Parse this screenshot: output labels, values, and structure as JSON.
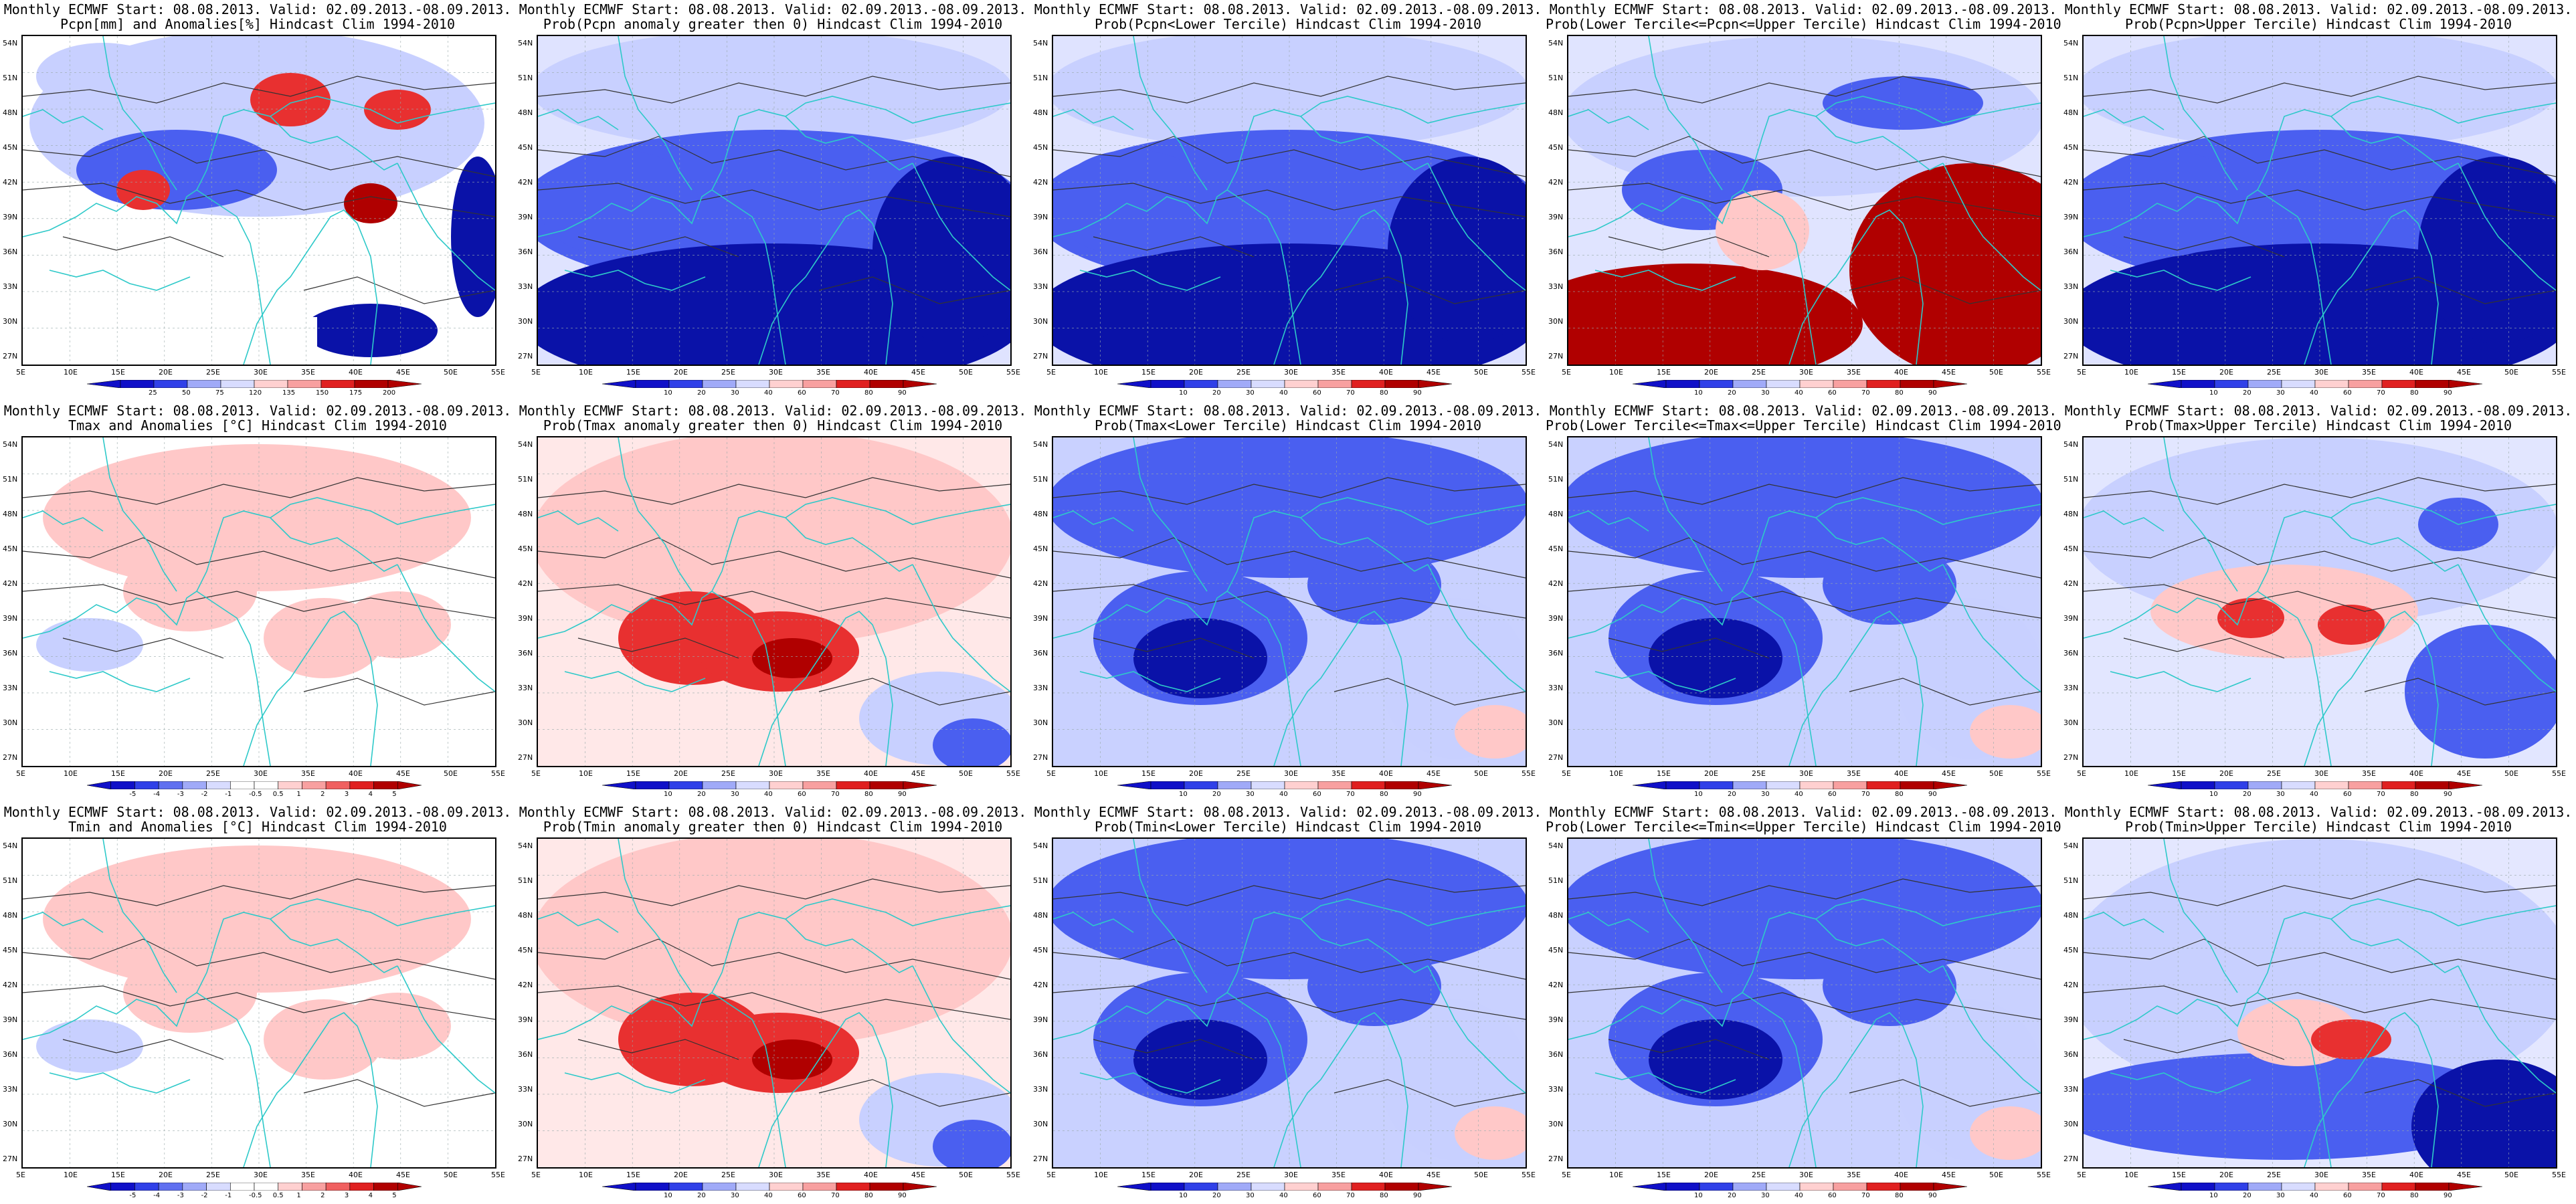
{
  "lat_labels": [
    "54N",
    "51N",
    "48N",
    "45N",
    "42N",
    "39N",
    "36N",
    "33N",
    "30N",
    "27N"
  ],
  "lon_labels": [
    "5E",
    "10E",
    "15E",
    "20E",
    "25E",
    "30E",
    "35E",
    "40E",
    "45E",
    "50E",
    "55E"
  ],
  "colors": {
    "coast": "#2ec9c9",
    "contour": "#333333",
    "blue_dark": "#0a12a8",
    "blue_mid": "#4a5ff0",
    "blue_light": "#c8d0ff",
    "red_dark": "#b00000",
    "red_mid": "#e83030",
    "red_light": "#ffc8c8"
  },
  "scale_labels": {
    "pcpn": [
      "25",
      "50",
      "75",
      "120",
      "135",
      "150",
      "175",
      "200"
    ],
    "prob": [
      "10",
      "20",
      "30",
      "40",
      "60",
      "70",
      "80",
      "90"
    ],
    "anom": [
      "-5",
      "-4",
      "-3",
      "-2",
      "-1",
      "-0.5",
      "0.5",
      "1",
      "2",
      "3",
      "4",
      "5"
    ]
  },
  "panels": [
    {
      "line1": "Monthly ECMWF Start: 08.08.2013. Valid: 02.09.2013.-08.09.2013.",
      "line2": "Pcpn[mm] and Anomalies[%] Hindcast Clim 1994-2010",
      "scale": "pcpn",
      "mode": "pcpn"
    },
    {
      "line1": "Monthly ECMWF Start: 08.08.2013. Valid: 02.09.2013.-08.09.2013.",
      "line2": "Prob(Pcpn anomaly greater then 0) Hindcast Clim 1994-2010",
      "scale": "prob",
      "mode": "blue"
    },
    {
      "line1": "Monthly ECMWF Start: 08.08.2013. Valid: 02.09.2013.-08.09.2013.",
      "line2": "Prob(Pcpn<Lower Tercile) Hindcast Clim 1994-2010",
      "scale": "prob",
      "mode": "blue"
    },
    {
      "line1": "Monthly ECMWF Start: 08.08.2013. Valid: 02.09.2013.-08.09.2013.",
      "line2": "Prob(Lower Tercile<=Pcpn<=Upper Tercile) Hindcast Clim 1994-2010",
      "scale": "prob",
      "mode": "redsouth"
    },
    {
      "line1": "Monthly ECMWF Start: 08.08.2013. Valid: 02.09.2013.-08.09.2013.",
      "line2": "Prob(Pcpn>Upper Tercile) Hindcast Clim 1994-2010",
      "scale": "prob",
      "mode": "blue"
    },
    {
      "line1": "Monthly ECMWF Start: 08.08.2013. Valid: 02.09.2013.-08.09.2013.",
      "line2": "Tmax and Anomalies [°C] Hindcast Clim 1994-2010",
      "scale": "anom",
      "mode": "lightred"
    },
    {
      "line1": "Monthly ECMWF Start: 08.08.2013. Valid: 02.09.2013.-08.09.2013.",
      "line2": "Prob(Tmax anomaly greater then 0) Hindcast Clim 1994-2010",
      "scale": "prob",
      "mode": "red"
    },
    {
      "line1": "Monthly ECMWF Start: 08.08.2013. Valid: 02.09.2013.-08.09.2013.",
      "line2": "Prob(Tmax<Lower Tercile) Hindcast Clim 1994-2010",
      "scale": "prob",
      "mode": "bluemid"
    },
    {
      "line1": "Monthly ECMWF Start: 08.08.2013. Valid: 02.09.2013.-08.09.2013.",
      "line2": "Prob(Lower Tercile<=Tmax<=Upper Tercile) Hindcast Clim 1994-2010",
      "scale": "prob",
      "mode": "bluemid"
    },
    {
      "line1": "Monthly ECMWF Start: 08.08.2013. Valid: 02.09.2013.-08.09.2013.",
      "line2": "Prob(Tmax>Upper Tercile) Hindcast Clim 1994-2010",
      "scale": "prob",
      "mode": "mixed"
    },
    {
      "line1": "Monthly ECMWF Start: 08.08.2013. Valid: 02.09.2013.-08.09.2013.",
      "line2": "Tmin and Anomalies [°C] Hindcast Clim 1994-2010",
      "scale": "anom",
      "mode": "lightred"
    },
    {
      "line1": "Monthly ECMWF Start: 08.08.2013. Valid: 02.09.2013.-08.09.2013.",
      "line2": "Prob(Tmin anomaly greater then 0) Hindcast Clim 1994-2010",
      "scale": "prob",
      "mode": "red"
    },
    {
      "line1": "Monthly ECMWF Start: 08.08.2013. Valid: 02.09.2013.-08.09.2013.",
      "line2": "Prob(Tmin<Lower Tercile) Hindcast Clim 1994-2010",
      "scale": "prob",
      "mode": "bluemid"
    },
    {
      "line1": "Monthly ECMWF Start: 08.08.2013. Valid: 02.09.2013.-08.09.2013.",
      "line2": "Prob(Lower Tercile<=Tmin<=Upper Tercile) Hindcast Clim 1994-2010",
      "scale": "prob",
      "mode": "bluemid"
    },
    {
      "line1": "Monthly ECMWF Start: 08.08.2013. Valid: 02.09.2013.-08.09.2013.",
      "line2": "Prob(Tmin>Upper Tercile) Hindcast Clim 1994-2010",
      "scale": "prob",
      "mode": "bluesouth"
    }
  ]
}
